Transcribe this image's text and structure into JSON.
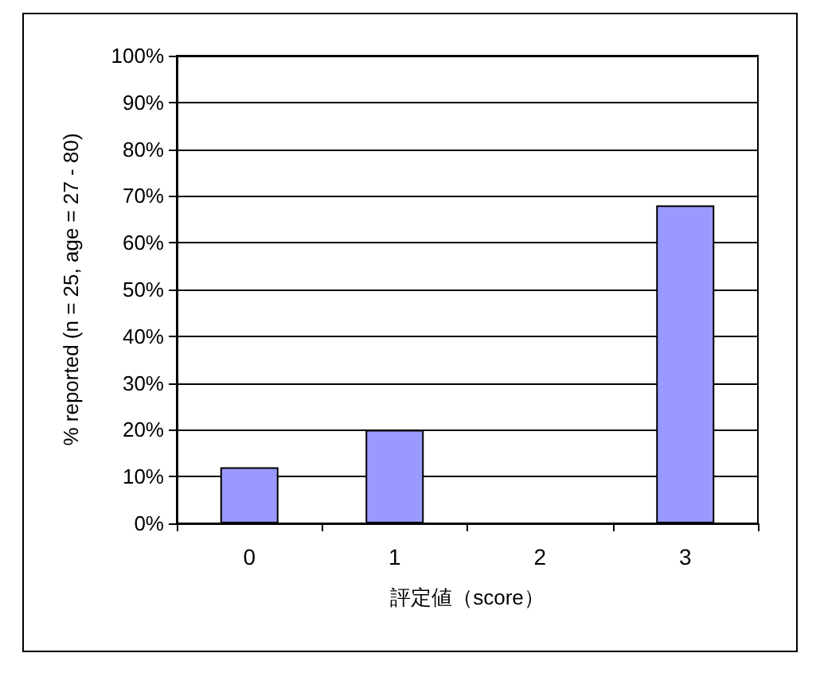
{
  "chart_data": {
    "type": "bar",
    "xlabel": "評定値（score）",
    "ylabel": "% reported (n = 25, age = 27 - 80)",
    "categories": [
      "0",
      "1",
      "2",
      "3"
    ],
    "values": [
      12,
      20,
      0,
      68
    ],
    "color": "#9999ff",
    "ylim": [
      0,
      100
    ],
    "yticks": [
      {
        "value": 0,
        "label": "0%"
      },
      {
        "value": 10,
        "label": "10%"
      },
      {
        "value": 20,
        "label": "20%"
      },
      {
        "value": 30,
        "label": "30%"
      },
      {
        "value": 40,
        "label": "40%"
      },
      {
        "value": 50,
        "label": "50%"
      },
      {
        "value": 60,
        "label": "60%"
      },
      {
        "value": 70,
        "label": "70%"
      },
      {
        "value": 80,
        "label": "80%"
      },
      {
        "value": 90,
        "label": "90%"
      },
      {
        "value": 100,
        "label": "100%"
      }
    ],
    "grid": "y"
  }
}
